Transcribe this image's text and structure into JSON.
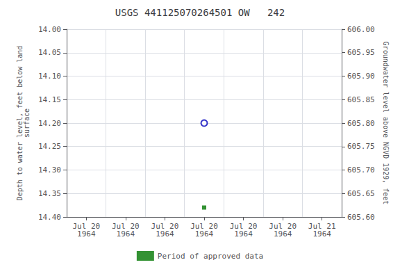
{
  "chart_data": {
    "type": "scatter",
    "title": "USGS 441125070264501 OW   242",
    "ylabel": "Depth to water level, feet below land\nsurface",
    "y2label": "Groundwater level above NGVD 1929, feet",
    "categories": [
      "Jul 20\n1964",
      "Jul 20\n1964",
      "Jul 20\n1964",
      "Jul 20\n1964",
      "Jul 20\n1964",
      "Jul 20\n1964",
      "Jul 21\n1964"
    ],
    "series": [
      {
        "color": "#0000bb",
        "marker": "circle",
        "values": [
          null,
          null,
          null,
          14.2,
          null,
          null,
          null
        ]
      },
      {
        "name": "Period of approved data",
        "color": "#007700",
        "marker": "square",
        "values": [
          null,
          null,
          null,
          14.38,
          null,
          null,
          null
        ]
      }
    ],
    "ylim": [
      14.4,
      14.0
    ],
    "yticks": [
      {
        "value": 14.0,
        "label": "14.00"
      },
      14.05,
      {
        "value": 14.1,
        "label": "14.10"
      },
      14.15,
      {
        "value": 14.2,
        "label": "14.20"
      },
      14.25,
      {
        "value": 14.3,
        "label": "14.30"
      },
      14.35,
      {
        "value": 14.4,
        "label": "14.40"
      }
    ],
    "y2lim": [
      605.6,
      606.0
    ],
    "y2ticks": [
      {
        "value": 606.0,
        "label": "606.00"
      },
      605.95,
      {
        "value": 605.9,
        "label": "605.90"
      },
      605.85,
      {
        "value": 605.8,
        "label": "605.80"
      },
      605.75,
      {
        "value": 605.7,
        "label": "605.70"
      },
      605.65,
      {
        "value": 605.6,
        "label": "605.60"
      }
    ],
    "grid": true,
    "legend": "bottom"
  }
}
